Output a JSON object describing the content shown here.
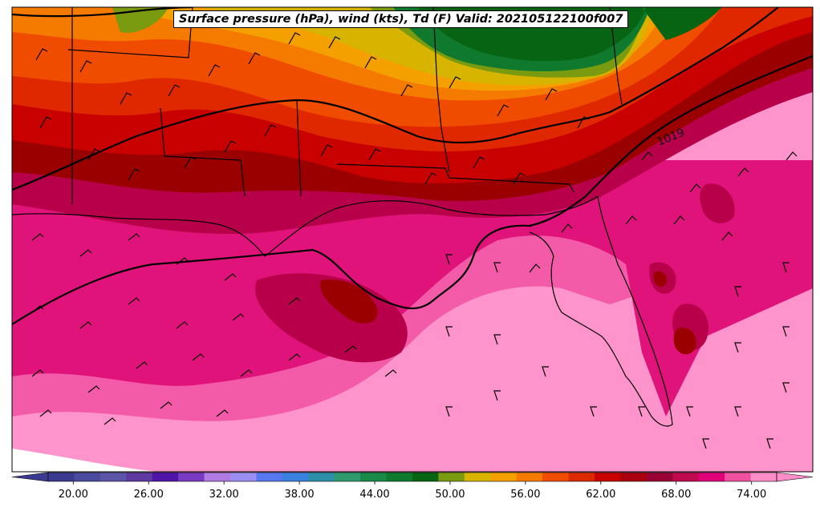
{
  "title": "Surface pressure (hPa), wind (kts), Td (F) Valid: 202105122100f007",
  "isobar_label": "1019",
  "colorbar": {
    "min": 18,
    "max": 76,
    "step": 2,
    "tick_labels": [
      "20.00",
      "26.00",
      "32.00",
      "38.00",
      "44.00",
      "50.00",
      "56.00",
      "62.00",
      "68.00",
      "74.00"
    ],
    "tick_values": [
      20,
      26,
      32,
      38,
      44,
      50,
      56,
      62,
      68,
      74
    ],
    "colors": [
      "#3a3a8f",
      "#4b4b9e",
      "#5c56a8",
      "#5e3aa0",
      "#4f14a8",
      "#7a3ac2",
      "#b07ae0",
      "#9c8ef0",
      "#5577f0",
      "#3a80de",
      "#2e8fa8",
      "#2e9a6e",
      "#1a8a48",
      "#0f7a2e",
      "#066412",
      "#7a9a10",
      "#d6b400",
      "#f4a000",
      "#f57a00",
      "#f04d00",
      "#dc2a00",
      "#c80000",
      "#a8000e",
      "#990033",
      "#c00a50",
      "#e0007a",
      "#f050a0",
      "#ff8ec8"
    ]
  },
  "legend_colors": {
    "land_pink_light": "#ff93cb",
    "pink_mid": "#f35aa8",
    "magenta": "#e0137b",
    "crimson": "#b8004a",
    "dark_red": "#9a0000",
    "red": "#c80000",
    "red_orange": "#e02800",
    "orange_red": "#f04c00",
    "orange": "#f57a00",
    "amber": "#f4a000",
    "gold": "#d6b400",
    "olive": "#7a9a10",
    "green": "#0f7a2e",
    "dark_green": "#066412"
  }
}
